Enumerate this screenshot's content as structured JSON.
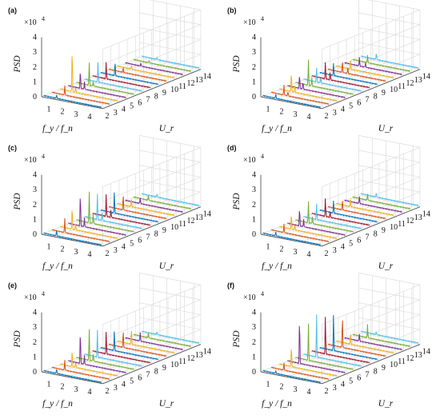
{
  "chart_data": [
    {
      "panel": "(a)",
      "type": "line",
      "multiplier": "×10",
      "multiplier_exp": "4",
      "zlabel": "PSD",
      "xlabel": "f_y / f_n",
      "ylabel": "U_r",
      "x_ticks": [
        "1",
        "2",
        "3",
        "4"
      ],
      "z_ticks": [
        "0",
        "1",
        "2",
        "3",
        "4"
      ],
      "y_ticks": [
        "2",
        "3",
        "4",
        "5",
        "6",
        "7",
        "8",
        "9",
        "10",
        "11",
        "12",
        "13",
        "14"
      ],
      "grid": true,
      "series": [
        {
          "ur": 2,
          "peaks": [
            [
              1.1,
              0.25
            ]
          ]
        },
        {
          "ur": 3,
          "peaks": [
            [
              1.1,
              0.65
            ]
          ]
        },
        {
          "ur": 4,
          "peaks": [
            [
              1.05,
              3.1
            ],
            [
              1.3,
              0.4
            ]
          ]
        },
        {
          "ur": 5,
          "peaks": [
            [
              1.05,
              1.3
            ],
            [
              1.35,
              0.5
            ]
          ]
        },
        {
          "ur": 6,
          "peaks": [
            [
              1.1,
              1.6
            ],
            [
              1.4,
              0.3
            ]
          ]
        },
        {
          "ur": 7,
          "peaks": [
            [
              1.15,
              1.45
            ]
          ]
        },
        {
          "ur": 8,
          "peaks": [
            [
              1.15,
              1.2
            ]
          ]
        },
        {
          "ur": 9,
          "peaks": [
            [
              1.2,
              1.0
            ]
          ]
        },
        {
          "ur": 10,
          "peaks": [
            [
              1.2,
              0.35
            ]
          ]
        },
        {
          "ur": 11,
          "peaks": [
            [
              1.2,
              0.25
            ]
          ]
        },
        {
          "ur": 12,
          "peaks": [
            [
              1.3,
              0.2
            ]
          ]
        },
        {
          "ur": 13,
          "peaks": [
            [
              1.3,
              0.15
            ]
          ]
        },
        {
          "ur": 14,
          "peaks": [
            [
              1.3,
              0.15
            ]
          ]
        }
      ]
    },
    {
      "panel": "(b)",
      "type": "line",
      "multiplier": "×10",
      "multiplier_exp": "4",
      "zlabel": "PSD",
      "xlabel": "f_y / f_n",
      "ylabel": "U_r",
      "x_ticks": [
        "1",
        "2",
        "3",
        "4"
      ],
      "z_ticks": [
        "0",
        "1",
        "2",
        "3",
        "4"
      ],
      "y_ticks": [
        "2",
        "3",
        "4",
        "5",
        "6",
        "7",
        "8",
        "9",
        "10",
        "11",
        "12",
        "13",
        "14"
      ],
      "grid": true,
      "series": [
        {
          "ur": 2,
          "peaks": [
            [
              1.1,
              0.3
            ]
          ]
        },
        {
          "ur": 3,
          "peaks": [
            [
              1.1,
              0.7
            ],
            [
              1.4,
              0.3
            ]
          ]
        },
        {
          "ur": 4,
          "peaks": [
            [
              1.05,
              1.4
            ],
            [
              1.3,
              0.6
            ]
          ]
        },
        {
          "ur": 5,
          "peaks": [
            [
              1.05,
              1.0
            ],
            [
              1.3,
              0.5
            ]
          ]
        },
        {
          "ur": 6,
          "peaks": [
            [
              1.1,
              1.8
            ],
            [
              1.35,
              0.6
            ]
          ]
        },
        {
          "ur": 7,
          "peaks": [
            [
              1.1,
              1.0
            ],
            [
              1.4,
              0.4
            ]
          ]
        },
        {
          "ur": 8,
          "peaks": [
            [
              1.15,
              1.2
            ],
            [
              1.5,
              0.5
            ]
          ]
        },
        {
          "ur": 9,
          "peaks": [
            [
              1.15,
              0.9
            ]
          ]
        },
        {
          "ur": 10,
          "peaks": [
            [
              1.2,
              0.8
            ],
            [
              1.6,
              0.4
            ]
          ]
        },
        {
          "ur": 11,
          "peaks": [
            [
              1.2,
              0.7
            ]
          ]
        },
        {
          "ur": 12,
          "peaks": [
            [
              1.25,
              0.6
            ],
            [
              1.7,
              0.3
            ]
          ]
        },
        {
          "ur": 13,
          "peaks": [
            [
              1.25,
              0.5
            ]
          ]
        },
        {
          "ur": 14,
          "peaks": [
            [
              1.3,
              0.5
            ]
          ]
        }
      ]
    },
    {
      "panel": "(c)",
      "type": "line",
      "multiplier": "×10",
      "multiplier_exp": "4",
      "zlabel": "PSD",
      "xlabel": "f_y / f_n",
      "ylabel": "U_r",
      "x_ticks": [
        "1",
        "2",
        "3",
        "4"
      ],
      "z_ticks": [
        "0",
        "1",
        "2",
        "3",
        "4"
      ],
      "y_ticks": [
        "2",
        "3",
        "4",
        "5",
        "6",
        "7",
        "8",
        "9",
        "10",
        "11",
        "12",
        "13",
        "14"
      ],
      "grid": true,
      "series": [
        {
          "ur": 2,
          "peaks": [
            [
              1.1,
              0.4
            ]
          ]
        },
        {
          "ur": 3,
          "peaks": [
            [
              1.1,
              1.0
            ]
          ]
        },
        {
          "ur": 4,
          "peaks": [
            [
              1.05,
              1.6
            ],
            [
              1.3,
              0.5
            ]
          ]
        },
        {
          "ur": 5,
          "peaks": [
            [
              1.05,
              2.4
            ],
            [
              1.35,
              0.6
            ]
          ]
        },
        {
          "ur": 6,
          "peaks": [
            [
              1.1,
              2.2
            ],
            [
              1.4,
              0.7
            ]
          ]
        },
        {
          "ur": 7,
          "peaks": [
            [
              1.1,
              1.8
            ],
            [
              1.45,
              0.6
            ]
          ]
        },
        {
          "ur": 8,
          "peaks": [
            [
              1.15,
              1.6
            ],
            [
              1.5,
              0.5
            ]
          ]
        },
        {
          "ur": 9,
          "peaks": [
            [
              1.15,
              1.5
            ]
          ]
        },
        {
          "ur": 10,
          "peaks": [
            [
              1.2,
              1.1
            ]
          ]
        },
        {
          "ur": 11,
          "peaks": [
            [
              1.2,
              0.6
            ]
          ]
        },
        {
          "ur": 12,
          "peaks": [
            [
              1.25,
              0.4
            ]
          ]
        },
        {
          "ur": 13,
          "peaks": [
            [
              1.25,
              0.3
            ]
          ]
        },
        {
          "ur": 14,
          "peaks": [
            [
              1.3,
              0.2
            ]
          ]
        }
      ]
    },
    {
      "panel": "(d)",
      "type": "line",
      "multiplier": "×10",
      "multiplier_exp": "4",
      "zlabel": "PSD",
      "xlabel": "f_y / f_n",
      "ylabel": "U_r",
      "x_ticks": [
        "1",
        "2",
        "3",
        "4"
      ],
      "z_ticks": [
        "0",
        "1",
        "2",
        "3",
        "4"
      ],
      "y_ticks": [
        "2",
        "3",
        "4",
        "5",
        "6",
        "7",
        "8",
        "9",
        "10",
        "11",
        "12",
        "13",
        "14"
      ],
      "grid": true,
      "series": [
        {
          "ur": 2,
          "peaks": [
            [
              1.1,
              0.3
            ]
          ]
        },
        {
          "ur": 3,
          "peaks": [
            [
              1.1,
              0.6
            ]
          ]
        },
        {
          "ur": 4,
          "peaks": [
            [
              1.05,
              1.1
            ],
            [
              1.3,
              0.4
            ]
          ]
        },
        {
          "ur": 5,
          "peaks": [
            [
              1.05,
              1.3
            ],
            [
              1.35,
              0.5
            ]
          ]
        },
        {
          "ur": 6,
          "peaks": [
            [
              1.1,
              1.5
            ],
            [
              1.4,
              0.5
            ]
          ]
        },
        {
          "ur": 7,
          "peaks": [
            [
              1.1,
              1.1
            ]
          ]
        },
        {
          "ur": 8,
          "peaks": [
            [
              1.15,
              1.3
            ],
            [
              1.5,
              0.4
            ]
          ]
        },
        {
          "ur": 9,
          "peaks": [
            [
              1.15,
              0.9
            ]
          ]
        },
        {
          "ur": 10,
          "peaks": [
            [
              1.2,
              0.7
            ]
          ]
        },
        {
          "ur": 11,
          "peaks": [
            [
              1.2,
              0.6
            ]
          ]
        },
        {
          "ur": 12,
          "peaks": [
            [
              1.25,
              0.5
            ]
          ]
        },
        {
          "ur": 13,
          "peaks": [
            [
              1.25,
              0.4
            ]
          ]
        },
        {
          "ur": 14,
          "peaks": [
            [
              1.3,
              0.3
            ]
          ]
        }
      ]
    },
    {
      "panel": "(e)",
      "type": "line",
      "multiplier": "×10",
      "multiplier_exp": "4",
      "zlabel": "PSD",
      "xlabel": "f_y / f_n",
      "ylabel": "U_r",
      "x_ticks": [
        "1",
        "2",
        "3",
        "4"
      ],
      "z_ticks": [
        "0",
        "1",
        "2",
        "3",
        "4"
      ],
      "y_ticks": [
        "2",
        "3",
        "4",
        "5",
        "6",
        "7",
        "8",
        "9",
        "10",
        "11",
        "12",
        "13",
        "14"
      ],
      "grid": true,
      "series": [
        {
          "ur": 2,
          "peaks": [
            [
              1.1,
              0.3
            ]
          ]
        },
        {
          "ur": 3,
          "peaks": [
            [
              1.1,
              0.7
            ]
          ]
        },
        {
          "ur": 4,
          "peaks": [
            [
              1.05,
              1.2
            ],
            [
              1.3,
              0.4
            ]
          ]
        },
        {
          "ur": 5,
          "peaks": [
            [
              1.05,
              2.3
            ],
            [
              1.35,
              0.6
            ]
          ]
        },
        {
          "ur": 6,
          "peaks": [
            [
              1.1,
              2.2
            ],
            [
              1.4,
              0.5
            ]
          ]
        },
        {
          "ur": 7,
          "peaks": [
            [
              1.1,
              1.9
            ]
          ]
        },
        {
          "ur": 8,
          "peaks": [
            [
              1.15,
              1.6
            ]
          ]
        },
        {
          "ur": 9,
          "peaks": [
            [
              1.15,
              1.4
            ]
          ]
        },
        {
          "ur": 10,
          "peaks": [
            [
              1.2,
              1.2
            ]
          ]
        },
        {
          "ur": 11,
          "peaks": [
            [
              1.2,
              1.1
            ]
          ]
        },
        {
          "ur": 12,
          "peaks": [
            [
              1.25,
              0.6
            ]
          ]
        },
        {
          "ur": 13,
          "peaks": [
            [
              1.25,
              0.3
            ]
          ]
        },
        {
          "ur": 14,
          "peaks": [
            [
              1.3,
              0.2
            ]
          ]
        }
      ]
    },
    {
      "panel": "(f)",
      "type": "line",
      "multiplier": "×10",
      "multiplier_exp": "4",
      "zlabel": "PSD",
      "xlabel": "f_y / f_n",
      "ylabel": "U_r",
      "x_ticks": [
        "1",
        "2",
        "3",
        "4"
      ],
      "z_ticks": [
        "0",
        "1",
        "2",
        "3",
        "4"
      ],
      "y_ticks": [
        "2",
        "3",
        "4",
        "5",
        "6",
        "7",
        "8",
        "9",
        "10",
        "11",
        "12",
        "13",
        "14"
      ],
      "grid": true,
      "series": [
        {
          "ur": 2,
          "peaks": [
            [
              1.1,
              0.2
            ]
          ]
        },
        {
          "ur": 3,
          "peaks": [
            [
              1.1,
              0.5
            ]
          ]
        },
        {
          "ur": 4,
          "peaks": [
            [
              1.05,
              1.5
            ]
          ]
        },
        {
          "ur": 5,
          "peaks": [
            [
              1.05,
              3.3
            ]
          ]
        },
        {
          "ur": 6,
          "peaks": [
            [
              1.1,
              2.6
            ]
          ]
        },
        {
          "ur": 7,
          "peaks": [
            [
              1.1,
              3.0
            ]
          ]
        },
        {
          "ur": 8,
          "peaks": [
            [
              1.15,
              2.7
            ]
          ]
        },
        {
          "ur": 9,
          "peaks": [
            [
              1.15,
              2.6
            ]
          ]
        },
        {
          "ur": 10,
          "peaks": [
            [
              1.2,
              2.2
            ]
          ]
        },
        {
          "ur": 11,
          "peaks": [
            [
              1.2,
              0.8
            ]
          ]
        },
        {
          "ur": 12,
          "peaks": [
            [
              1.25,
              0.5
            ]
          ]
        },
        {
          "ur": 13,
          "peaks": [
            [
              1.25,
              0.9
            ]
          ]
        },
        {
          "ur": 14,
          "peaks": [
            [
              1.3,
              0.2
            ]
          ]
        }
      ]
    }
  ],
  "colors": {
    "series": [
      "#0072BD",
      "#D95319",
      "#EDB120",
      "#7E2F8E",
      "#77AC30",
      "#4DBEEE",
      "#A2142F",
      "#0072BD",
      "#D95319",
      "#EDB120",
      "#7E2F8E",
      "#77AC30",
      "#4DBEEE"
    ],
    "grid": "#dddddd",
    "axis": "#555555"
  }
}
